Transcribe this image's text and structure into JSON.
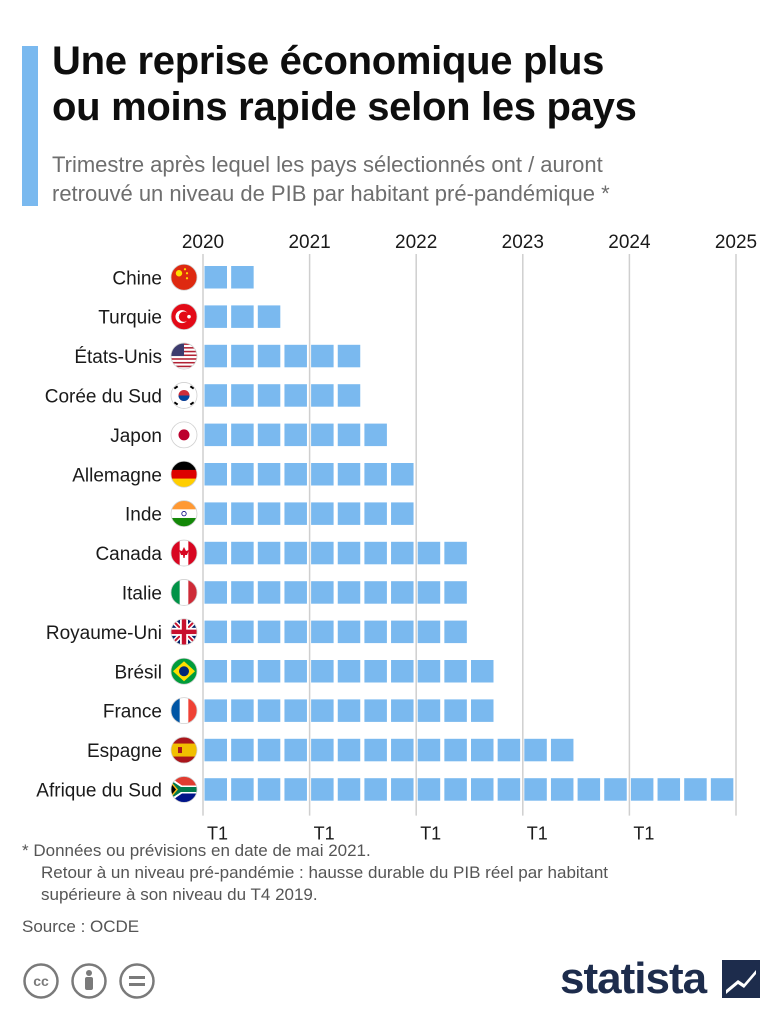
{
  "title_line1": "Une reprise économique plus",
  "title_line2": "ou moins rapide selon les pays",
  "subtitle_line1": "Trimestre après lequel les pays sélectionnés ont / auront",
  "subtitle_line2": "retrouvé un niveau de PIB par habitant pré-pandémique *",
  "footnote_line1": "* Données ou prévisions en date de mai 2021.",
  "footnote_line2": "Retour à un niveau pré-pandémie : hausse durable du PIB réel par habitant",
  "footnote_line3": "supérieure à son niveau du T4 2019.",
  "source": "Source : OCDE",
  "brand": "statista",
  "colors": {
    "accent": "#7ab9ef",
    "bar": "#7ab9ef",
    "grid": "#cfcfcf",
    "brand": "#1d2c4c"
  },
  "chart_data": {
    "type": "bar",
    "orientation": "horizontal",
    "unit": "quarters",
    "year_labels": [
      "2020",
      "2021",
      "2022",
      "2023",
      "2024",
      "2025"
    ],
    "quarter_label": "T1",
    "categories": [
      "Chine",
      "Turquie",
      "États-Unis",
      "Corée du Sud",
      "Japon",
      "Allemagne",
      "Inde",
      "Canada",
      "Italie",
      "Royaume-Uni",
      "Brésil",
      "France",
      "Espagne",
      "Afrique du Sud"
    ],
    "flags": [
      "flag-china",
      "flag-turkey",
      "flag-usa",
      "flag-south-korea",
      "flag-japan",
      "flag-germany",
      "flag-india",
      "flag-canada",
      "flag-italy",
      "flag-uk",
      "flag-brazil",
      "flag-france",
      "flag-spain",
      "flag-south-africa"
    ],
    "values": [
      2,
      3,
      6,
      6,
      7,
      8,
      8,
      10,
      10,
      10,
      11,
      11,
      14,
      20
    ],
    "grid": true
  }
}
